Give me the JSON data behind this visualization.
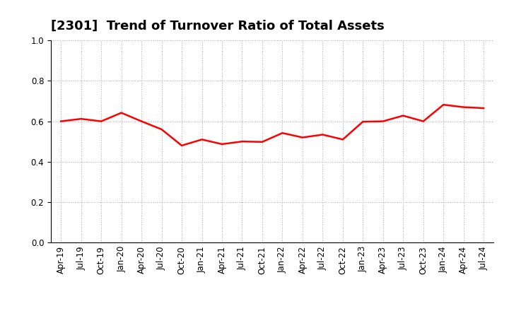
{
  "title": "[2301]  Trend of Turnover Ratio of Total Assets",
  "line_color": "#FF0000",
  "line_width": 1.8,
  "background_color": "#FFFFFF",
  "grid_color": "#AAAAAA",
  "ylim": [
    0.0,
    1.0
  ],
  "yticks": [
    0.0,
    0.2,
    0.4,
    0.6,
    0.8,
    1.0
  ],
  "x_labels": [
    "Apr-19",
    "Jul-19",
    "Oct-19",
    "Jan-20",
    "Apr-20",
    "Jul-20",
    "Oct-20",
    "Jan-21",
    "Apr-21",
    "Jul-21",
    "Oct-21",
    "Jan-22",
    "Apr-22",
    "Jul-22",
    "Oct-22",
    "Jan-23",
    "Apr-23",
    "Jul-23",
    "Oct-23",
    "Jan-24",
    "Apr-24",
    "Jul-24"
  ],
  "values": [
    0.6,
    0.612,
    0.6,
    0.642,
    0.6,
    0.56,
    0.48,
    0.51,
    0.487,
    0.5,
    0.498,
    0.542,
    0.52,
    0.534,
    0.51,
    0.598,
    0.6,
    0.628,
    0.6,
    0.682,
    0.67,
    0.665
  ],
  "title_fontsize": 13,
  "tick_fontsize": 8.5
}
